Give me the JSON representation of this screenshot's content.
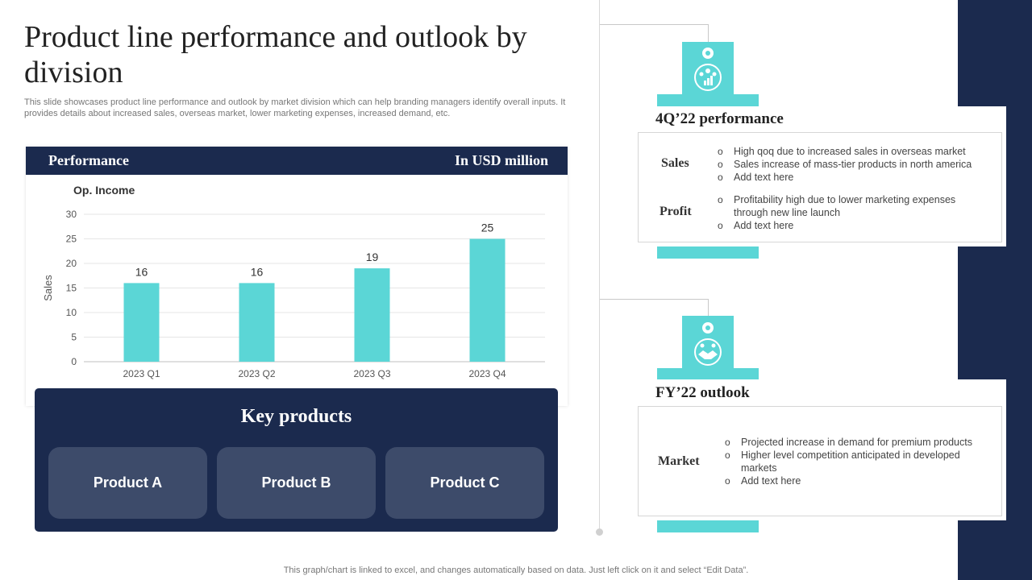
{
  "title": "Product line performance and outlook by division",
  "subtitle": "This slide showcases product line performance and outlook by market division which can help branding managers identify overall inputs. It provides details about increased sales, overseas market, lower marketing expenses, increased demand, etc.",
  "chart_panel": {
    "left_header": "Performance",
    "right_header": "In USD million"
  },
  "chart_data": {
    "type": "bar",
    "title": "Op. Income",
    "categories": [
      "2023 Q1",
      "2023 Q2",
      "2023 Q3",
      "2023 Q4"
    ],
    "values": [
      16,
      16,
      19,
      25
    ],
    "xlabel": "",
    "ylabel": "Sales",
    "ylim": [
      0,
      30
    ],
    "yticks": [
      0,
      5,
      10,
      15,
      20,
      25,
      30
    ],
    "grid": true,
    "bar_color": "#5bd6d6"
  },
  "key_products": {
    "title": "Key products",
    "items": [
      "Product A",
      "Product B",
      "Product C"
    ]
  },
  "performance": {
    "title": "4Q’22 performance",
    "rows": [
      {
        "label": "Sales",
        "bullets": [
          "High qoq due to increased sales in overseas market",
          "Sales increase of mass-tier products in north america",
          "Add text here"
        ]
      },
      {
        "label": "Profit",
        "bullets": [
          "Profitability high due to lower marketing expenses through new line launch",
          "Add text here"
        ]
      }
    ]
  },
  "outlook": {
    "title": "FY’22 outlook",
    "rows": [
      {
        "label": "Market",
        "bullets": [
          "Projected increase in demand for premium products",
          "Higher level competition anticipated in developed  markets",
          "Add text here"
        ]
      }
    ]
  },
  "icons": {
    "performance": "team-chart-icon",
    "outlook": "handshake-icon"
  },
  "colors": {
    "navy": "#1b2a4e",
    "teal": "#5bd6d6",
    "product_tile": "#3d4b6a"
  },
  "footer": "This graph/chart is linked to excel,  and changes automatically based on data. Just left click on it and select “Edit Data”."
}
